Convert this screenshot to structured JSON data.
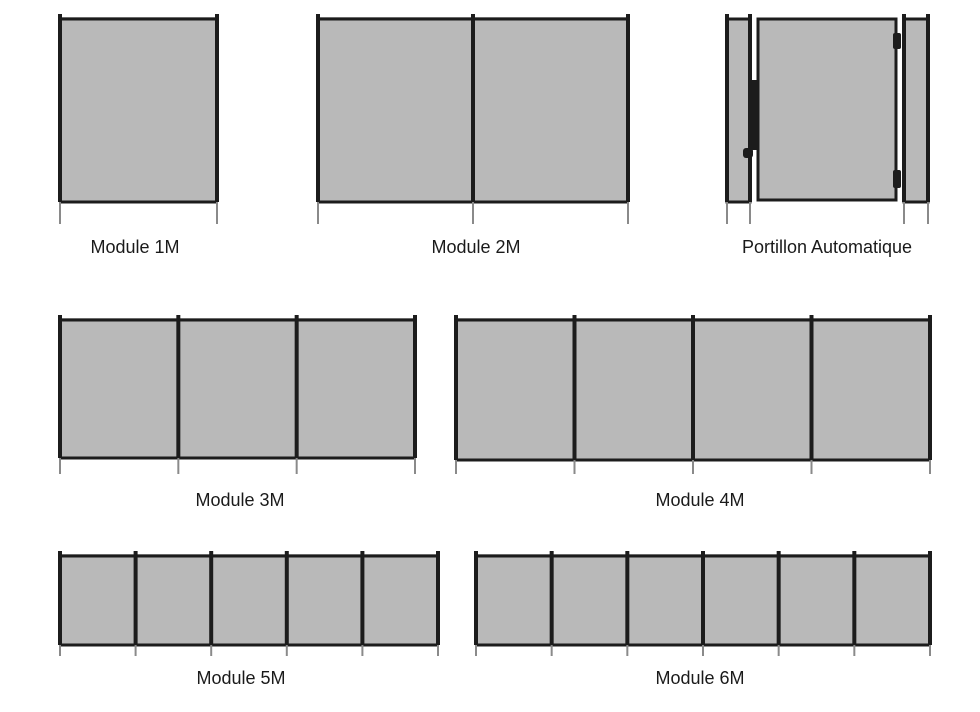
{
  "colors": {
    "frame": "#1c1c1c",
    "mesh": "#b9b9b9",
    "post_tip": "#8a8a8a",
    "background": "#ffffff"
  },
  "modules": [
    {
      "id": "module-1m",
      "label": "Module 1M",
      "panels": 1,
      "type": "fence"
    },
    {
      "id": "module-2m",
      "label": "Module 2M",
      "panels": 2,
      "type": "fence"
    },
    {
      "id": "portillon",
      "label": "Portillon Automatique",
      "panels": 1,
      "type": "gate"
    },
    {
      "id": "module-3m",
      "label": "Module 3M",
      "panels": 3,
      "type": "fence"
    },
    {
      "id": "module-4m",
      "label": "Module 4M",
      "panels": 4,
      "type": "fence"
    },
    {
      "id": "module-5m",
      "label": "Module 5M",
      "panels": 5,
      "type": "fence"
    },
    {
      "id": "module-6m",
      "label": "Module 6M",
      "panels": 6,
      "type": "fence"
    }
  ]
}
